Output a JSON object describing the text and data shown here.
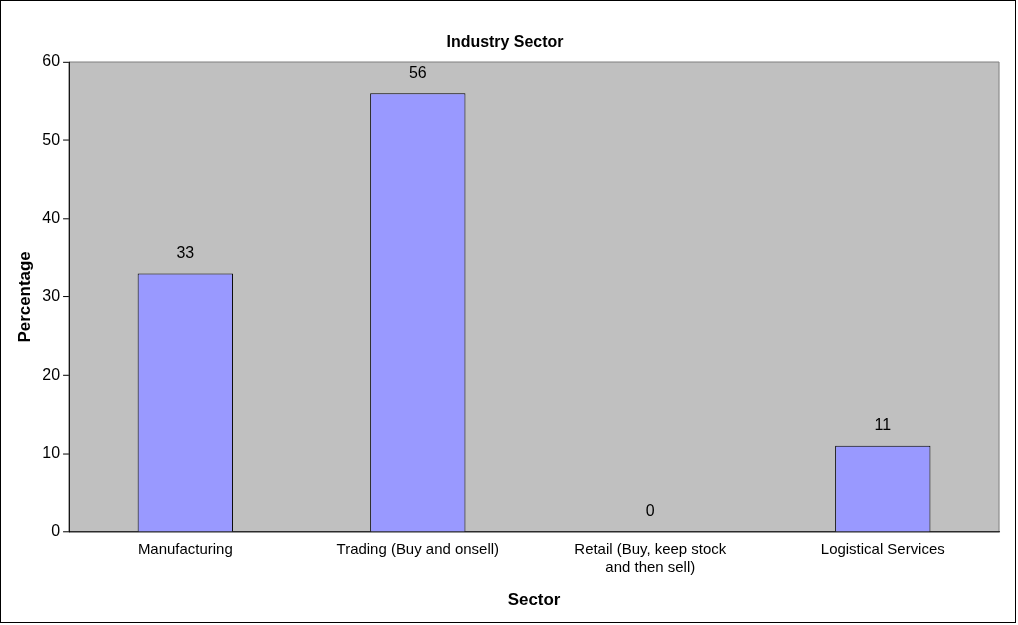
{
  "chart_data": {
    "type": "bar",
    "title": "Industry Sector",
    "xlabel": "Sector",
    "ylabel": "Percentage",
    "categories": [
      "Manufacturing",
      "Trading (Buy and onsell)",
      "Retail (Buy, keep stock and then sell)",
      "Logistical Services"
    ],
    "values": [
      33,
      56,
      0,
      11
    ],
    "color": "#9999ff",
    "ylim": [
      0,
      60
    ],
    "yticks": [
      0,
      10,
      20,
      30,
      40,
      50,
      60
    ],
    "grid": false,
    "legend": false,
    "data_labels": true
  }
}
